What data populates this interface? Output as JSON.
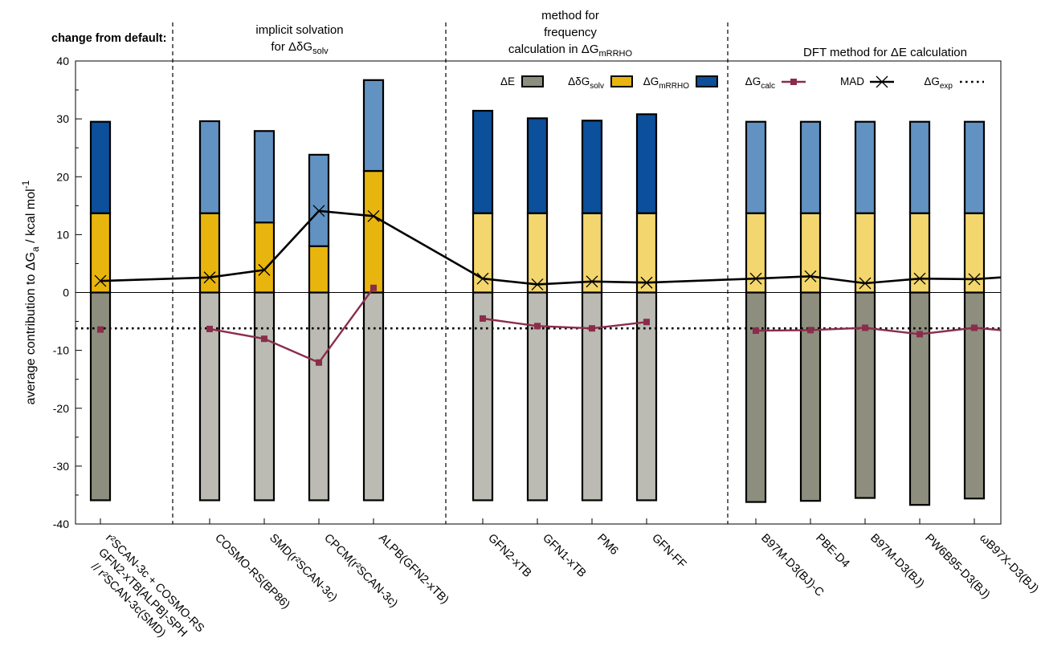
{
  "chart_data": {
    "type": "bar",
    "stacked": true,
    "header_label": "change from default:",
    "group_labels": [
      {
        "lines": [
          "implicit solvation",
          "for ΔδG",
          "solv"
        ]
      },
      {
        "lines": [
          "method for",
          "frequency",
          "calculation in ΔG",
          "mRRHO"
        ]
      },
      {
        "lines": [
          "DFT method for ΔE calculation"
        ]
      }
    ],
    "ylabel": {
      "prefix": "average contribution to  ΔG",
      "sub": "a",
      "suffix": " / kcal mol",
      "sup": "-1"
    },
    "ylim": [
      -40,
      40
    ],
    "yticks": [
      "-40",
      "-30",
      "-20",
      "-10",
      "0",
      "10",
      "20",
      "30",
      "40"
    ],
    "grid": false,
    "legend_position": "top-right",
    "categories": [
      {
        "name": "default",
        "lines": [
          "r²SCAN-3c + COSMO-RS",
          "GFN2-xTB[ALPB]-SPH",
          "// r²SCAN-3c(SMD)"
        ]
      },
      {
        "name": "cosmo-rs",
        "lines": [
          "COSMO-RS(BP86)"
        ]
      },
      {
        "name": "smd",
        "lines": [
          "SMD(r²SCAN-3c)"
        ]
      },
      {
        "name": "cpcm",
        "lines": [
          "CPCM(r²SCAN-3c)"
        ]
      },
      {
        "name": "alpb",
        "lines": [
          "ALPB(GFN2-xTB)"
        ]
      },
      {
        "name": "gfn2",
        "lines": [
          "GFN2-xTB"
        ]
      },
      {
        "name": "gfn1",
        "lines": [
          "GFN1-xTB"
        ]
      },
      {
        "name": "pm6",
        "lines": [
          "PM6"
        ]
      },
      {
        "name": "gfnff",
        "lines": [
          "GFN-FF"
        ]
      },
      {
        "name": "b97m-c",
        "lines": [
          "B97M-D3(BJ)-C"
        ]
      },
      {
        "name": "pbe",
        "lines": [
          "PBE-D4"
        ]
      },
      {
        "name": "b97m",
        "lines": [
          "B97M-D3(BJ)"
        ]
      },
      {
        "name": "pw6b95",
        "lines": [
          "PW6B95-D3(BJ)"
        ]
      },
      {
        "name": "wb97x",
        "lines": [
          "ωB97X-D3(BJ)"
        ]
      }
    ],
    "series": [
      {
        "name": "ΔE",
        "label": "ΔE",
        "values": [
          -35.9,
          -35.9,
          -35.9,
          -35.9,
          -35.9,
          -35.9,
          -35.9,
          -35.9,
          -35.9,
          -36.2,
          -36.0,
          -35.5,
          -36.7,
          -35.6
        ]
      },
      {
        "name": "ΔδGsolv",
        "label": "ΔδG",
        "sub": "solv",
        "values": [
          13.7,
          13.7,
          12.1,
          8.0,
          21.0,
          13.7,
          13.7,
          13.7,
          13.7,
          13.7,
          13.7,
          13.7,
          13.7,
          13.7
        ]
      },
      {
        "name": "ΔGmRRHO",
        "label": "ΔG",
        "sub": "mRRHO",
        "values": [
          15.8,
          15.9,
          15.8,
          15.8,
          15.7,
          17.7,
          16.4,
          16.0,
          17.1,
          15.8,
          15.8,
          15.8,
          15.8,
          15.8
        ]
      },
      {
        "name": "ΔGcalc",
        "label": "ΔG",
        "sub": "calc",
        "values": [
          -6.4,
          -6.3,
          -8.0,
          -12.1,
          0.8,
          -4.5,
          -5.8,
          -6.2,
          -5.1,
          -6.6,
          -6.5,
          -6.1,
          -7.2,
          -6.1
        ]
      },
      {
        "name": "MAD",
        "label": "MAD",
        "values": [
          2.0,
          2.6,
          3.9,
          14.1,
          13.2,
          2.4,
          1.4,
          1.9,
          1.7,
          2.4,
          2.8,
          1.6,
          2.4,
          2.3
        ]
      },
      {
        "name": "ΔGexp",
        "label": "ΔG",
        "sub": "exp",
        "value": -6.2
      }
    ],
    "colors": {
      "dE_default": "#8e8e7e",
      "dE_light": "#bbbbb3",
      "solv_dark": "#e8b50e",
      "solv_light": "#f3d66d",
      "rrho_dark": "#0c4f9a",
      "rrho_light": "#6192c2",
      "calc": "#8b2c4b",
      "mad": "#000000"
    },
    "bar_shades": [
      {
        "dE": "dE_default",
        "solv": "solv_dark",
        "rrho": "rrho_dark"
      },
      {
        "dE": "dE_light",
        "solv": "solv_dark",
        "rrho": "rrho_light"
      },
      {
        "dE": "dE_light",
        "solv": "solv_dark",
        "rrho": "rrho_light"
      },
      {
        "dE": "dE_light",
        "solv": "solv_dark",
        "rrho": "rrho_light"
      },
      {
        "dE": "dE_light",
        "solv": "solv_dark",
        "rrho": "rrho_light"
      },
      {
        "dE": "dE_light",
        "solv": "solv_light",
        "rrho": "rrho_dark"
      },
      {
        "dE": "dE_light",
        "solv": "solv_light",
        "rrho": "rrho_dark"
      },
      {
        "dE": "dE_light",
        "solv": "solv_light",
        "rrho": "rrho_dark"
      },
      {
        "dE": "dE_light",
        "solv": "solv_light",
        "rrho": "rrho_dark"
      },
      {
        "dE": "dE_default",
        "solv": "solv_light",
        "rrho": "rrho_light"
      },
      {
        "dE": "dE_default",
        "solv": "solv_light",
        "rrho": "rrho_light"
      },
      {
        "dE": "dE_default",
        "solv": "solv_light",
        "rrho": "rrho_light"
      },
      {
        "dE": "dE_default",
        "solv": "solv_light",
        "rrho": "rrho_light"
      },
      {
        "dE": "dE_default",
        "solv": "solv_light",
        "rrho": "rrho_light"
      }
    ]
  }
}
